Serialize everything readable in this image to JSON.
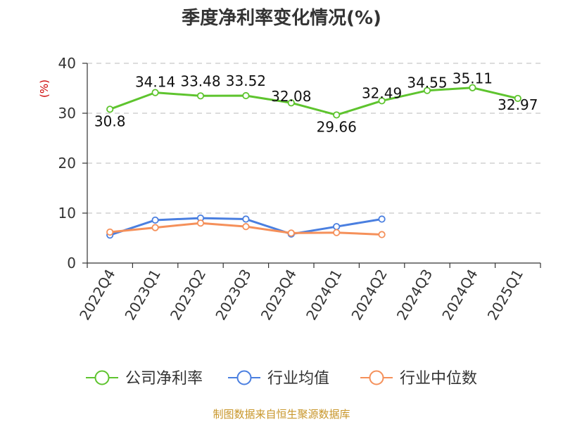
{
  "chart_data": {
    "type": "line",
    "title": "季度净利率变化情况(%)",
    "unit_label": "(%)",
    "categories": [
      "2022Q4",
      "2023Q1",
      "2023Q2",
      "2023Q3",
      "2023Q4",
      "2024Q1",
      "2024Q2",
      "2024Q3",
      "2024Q4",
      "2025Q1"
    ],
    "ylim": [
      0,
      40
    ],
    "yticks": [
      0,
      10,
      20,
      30,
      40
    ],
    "grid": true,
    "legend_position": "bottom",
    "series": [
      {
        "name": "公司净利率",
        "color": "#5ec42e",
        "values": [
          30.8,
          34.14,
          33.48,
          33.52,
          32.08,
          29.66,
          32.49,
          34.55,
          35.11,
          32.97
        ],
        "labels": [
          "30.8",
          "34.14",
          "33.48",
          "33.52",
          "32.08",
          "29.66",
          "32.49",
          "34.55",
          "35.11",
          "32.97"
        ]
      },
      {
        "name": "行业均值",
        "color": "#4a7fe0",
        "values": [
          5.6,
          8.6,
          9.0,
          8.8,
          5.8,
          7.3,
          8.8,
          null,
          null,
          null
        ]
      },
      {
        "name": "行业中位数",
        "color": "#f5905a",
        "values": [
          6.2,
          7.1,
          8.0,
          7.3,
          6.0,
          6.1,
          5.7,
          null,
          null,
          null
        ]
      }
    ]
  },
  "source": "制图数据来自恒生聚源数据库"
}
